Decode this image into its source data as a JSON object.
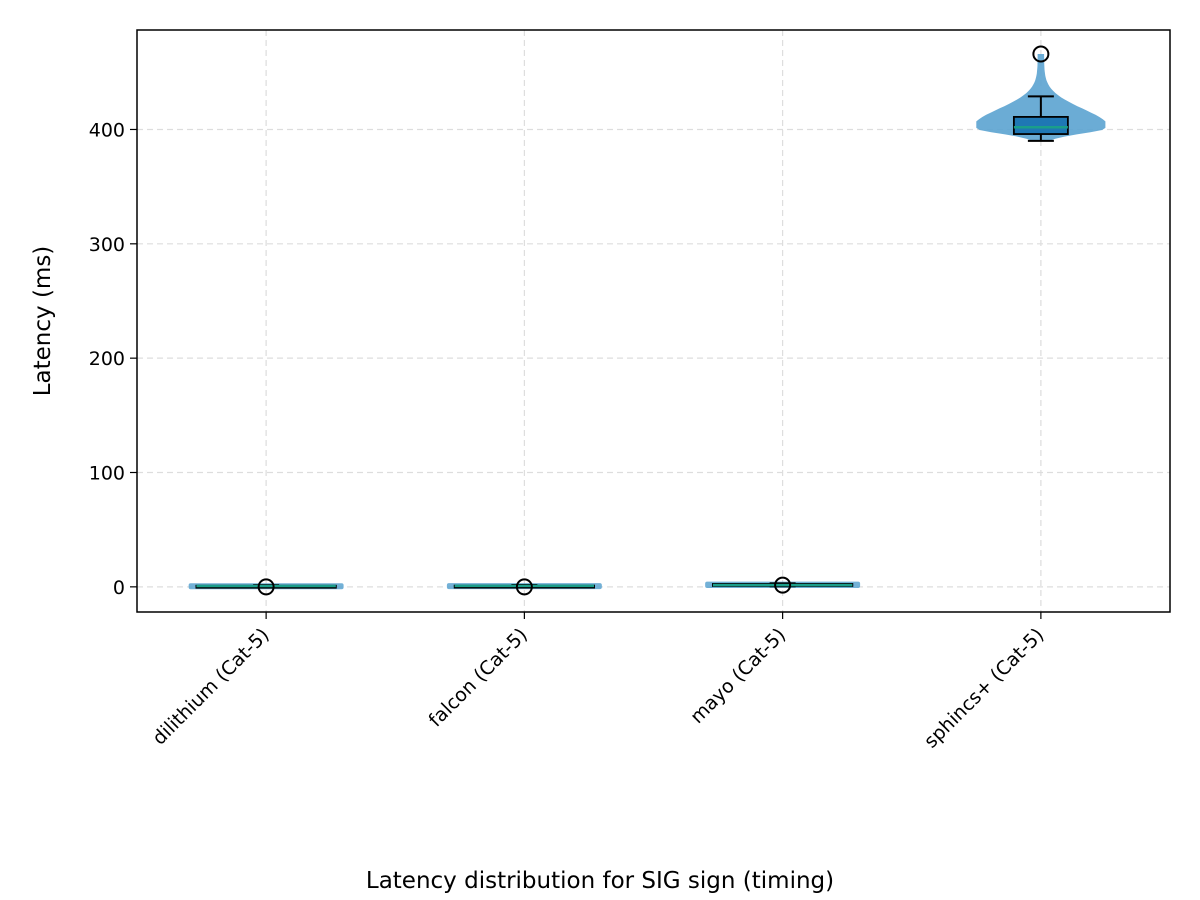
{
  "chart_data": {
    "type": "box",
    "overlay": "violin",
    "caption": "Latency distribution for SIG sign (timing)",
    "xlabel": "",
    "ylabel": "Latency (ms)",
    "ylim": [
      -22,
      487
    ],
    "yticks": [
      0,
      100,
      200,
      300,
      400
    ],
    "grid": true,
    "categories": [
      "dilithium (Cat-5)",
      "falcon (Cat-5)",
      "mayo (Cat-5)",
      "sphincs+ (Cat-5)"
    ],
    "series": [
      {
        "category": "dilithium (Cat-5)",
        "whisker_low": 0.3,
        "q1": 0.5,
        "median": 0.7,
        "q3": 1.0,
        "whisker_high": 1.5,
        "outliers": [
          0.0
        ],
        "violin": {
          "min": 0.0,
          "max": 1.8,
          "max_halfwidth_data": 0.3
        }
      },
      {
        "category": "falcon (Cat-5)",
        "whisker_low": 0.3,
        "q1": 0.5,
        "median": 0.8,
        "q3": 1.1,
        "whisker_high": 1.6,
        "outliers": [
          0.0
        ],
        "violin": {
          "min": 0.0,
          "max": 1.9,
          "max_halfwidth_data": 0.3
        }
      },
      {
        "category": "mayo (Cat-5)",
        "whisker_low": 0.5,
        "q1": 1.0,
        "median": 1.5,
        "q3": 2.5,
        "whisker_high": 3.0,
        "outliers": [
          1.5
        ],
        "violin": {
          "min": 0.3,
          "max": 3.2,
          "max_halfwidth_data": 0.3
        }
      },
      {
        "category": "sphincs+ (Cat-5)",
        "whisker_low": 390,
        "q1": 396,
        "median": 402,
        "q3": 411,
        "whisker_high": 429,
        "outliers": [
          466
        ],
        "violin": {
          "min": 390,
          "max": 466,
          "max_halfwidth_data": 0.25
        }
      }
    ],
    "colors": {
      "violin_fill": "#5ba3d0",
      "box_fill": "#1f77b4",
      "box_edge": "#000000",
      "median_line": "#1a9e8a",
      "grid": "#dddddd",
      "axis": "#000000"
    }
  }
}
